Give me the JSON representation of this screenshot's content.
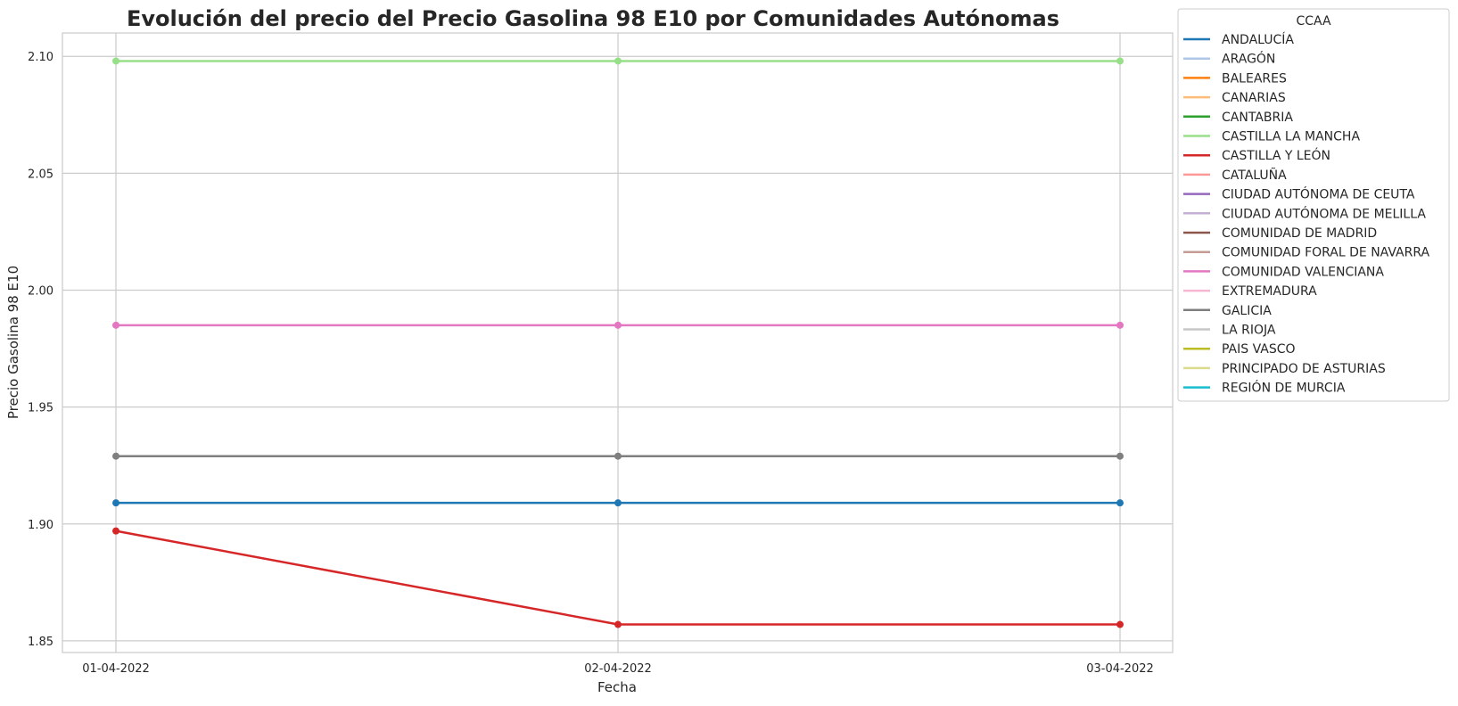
{
  "chart_data": {
    "type": "line",
    "title": "Evolución del precio del Precio Gasolina 98 E10 por Comunidades Autónomas",
    "xlabel": "Fecha",
    "ylabel": "Precio Gasolina 98 E10",
    "x": [
      "01-04-2022",
      "02-04-2022",
      "03-04-2022"
    ],
    "ylim": [
      1.845,
      2.11
    ],
    "yticks": [
      "1.85",
      "1.90",
      "1.95",
      "2.00",
      "2.05",
      "2.10"
    ],
    "grid": true,
    "legend": {
      "title": "CCAA",
      "placement": "outside-right-top",
      "entries": [
        {
          "name": "ANDALUCÍA",
          "color": "#1f77b4"
        },
        {
          "name": "ARAGÓN",
          "color": "#aec7e8"
        },
        {
          "name": "BALEARES",
          "color": "#ff7f0e"
        },
        {
          "name": "CANARIAS",
          "color": "#ffbb78"
        },
        {
          "name": "CANTABRIA",
          "color": "#2ca02c"
        },
        {
          "name": "CASTILLA LA MANCHA",
          "color": "#98df8a"
        },
        {
          "name": "CASTILLA Y LEÓN",
          "color": "#d62728"
        },
        {
          "name": "CATALUÑA",
          "color": "#ff9896"
        },
        {
          "name": "CIUDAD AUTÓNOMA DE CEUTA",
          "color": "#9467bd"
        },
        {
          "name": "CIUDAD AUTÓNOMA DE MELILLA",
          "color": "#c5b0d5"
        },
        {
          "name": "COMUNIDAD DE MADRID",
          "color": "#8c564b"
        },
        {
          "name": "COMUNIDAD FORAL DE NAVARRA",
          "color": "#c49c94"
        },
        {
          "name": "COMUNIDAD VALENCIANA",
          "color": "#e377c2"
        },
        {
          "name": "EXTREMADURA",
          "color": "#f7b6d2"
        },
        {
          "name": "GALICIA",
          "color": "#7f7f7f"
        },
        {
          "name": "LA RIOJA",
          "color": "#c7c7c7"
        },
        {
          "name": "PAIS VASCO",
          "color": "#bcbd22"
        },
        {
          "name": "PRINCIPADO DE ASTURIAS",
          "color": "#dbdb8d"
        },
        {
          "name": "REGIÓN DE MURCIA",
          "color": "#17becf"
        }
      ]
    },
    "series": [
      {
        "name": "CASTILLA LA MANCHA",
        "color": "#98df8a",
        "values": [
          2.098,
          2.098,
          2.098
        ]
      },
      {
        "name": "COMUNIDAD VALENCIANA",
        "color": "#e377c2",
        "values": [
          1.985,
          1.985,
          1.985
        ]
      },
      {
        "name": "GALICIA",
        "color": "#7f7f7f",
        "values": [
          1.929,
          1.929,
          1.929
        ]
      },
      {
        "name": "ANDALUCÍA",
        "color": "#1f77b4",
        "values": [
          1.909,
          1.909,
          1.909
        ]
      },
      {
        "name": "CASTILLA Y LEÓN",
        "color": "#d62728",
        "values": [
          1.897,
          1.857,
          1.857
        ]
      }
    ]
  }
}
